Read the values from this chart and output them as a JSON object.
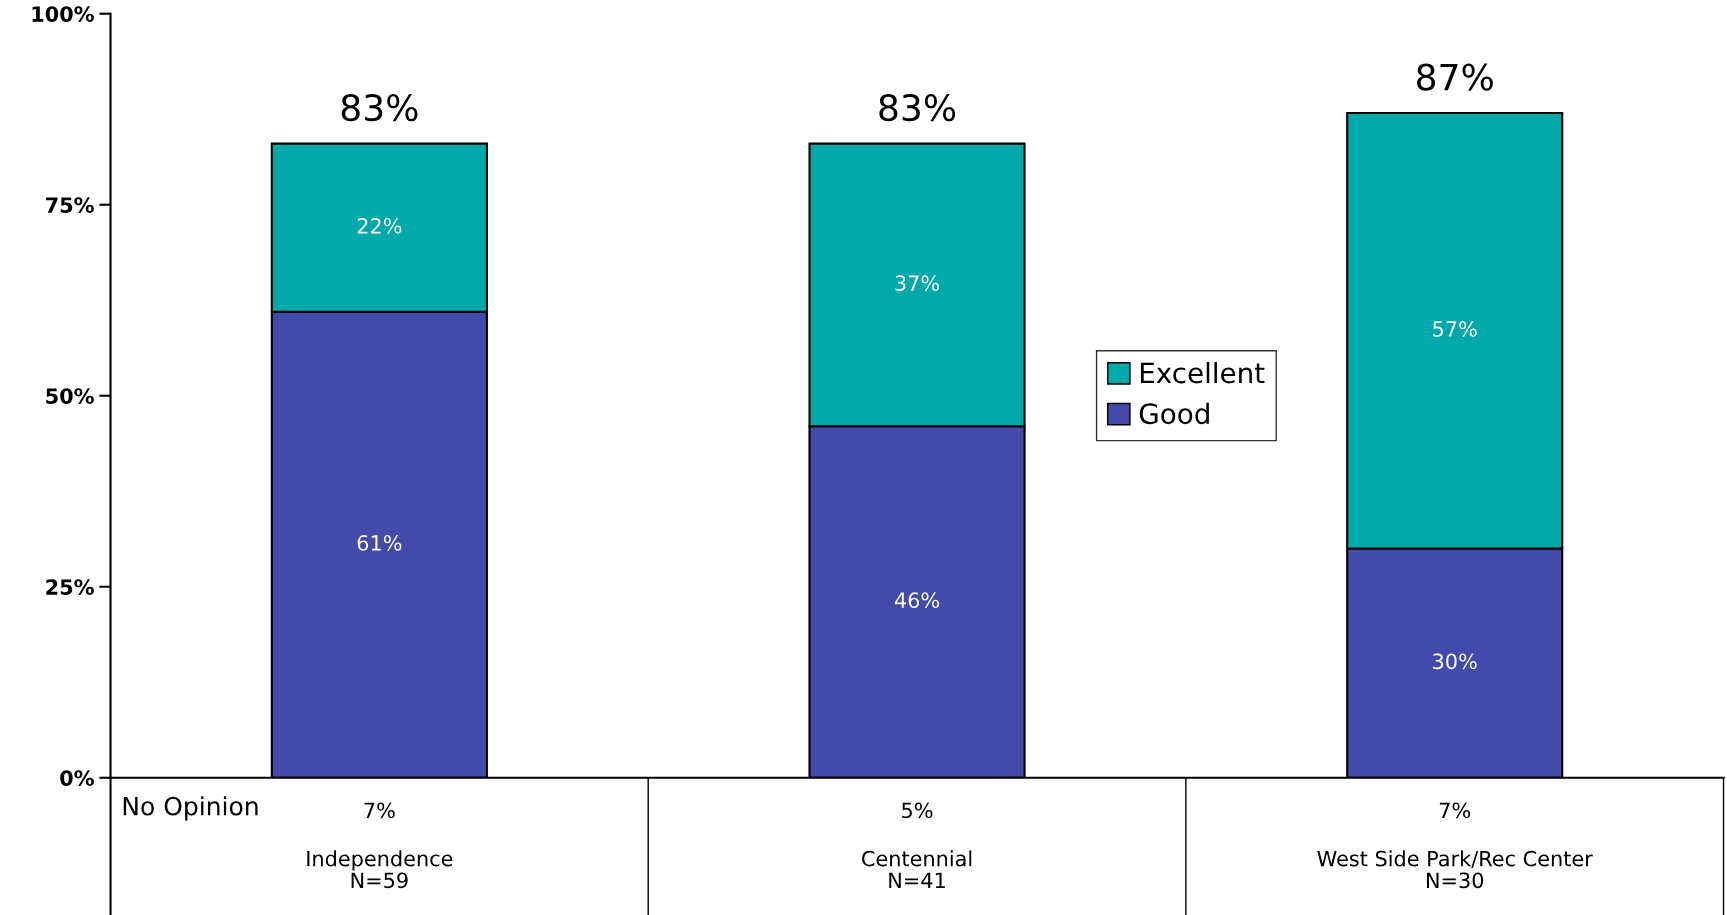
{
  "chart_data": {
    "type": "bar",
    "stacked": true,
    "categories": [
      "Independence\nN=59",
      "Centennial\nN=41",
      "West Side Park/Rec Center\nN=30"
    ],
    "series": [
      {
        "name": "Good",
        "color": "#434aab",
        "values": [
          61,
          46,
          30
        ],
        "value_labels": [
          "61%",
          "46%",
          "30%"
        ]
      },
      {
        "name": "Excellent",
        "color": "#00a9a9",
        "values": [
          22,
          37,
          57
        ],
        "value_labels": [
          "22%",
          "37%",
          "57%"
        ]
      }
    ],
    "totals": [
      "83%",
      "83%",
      "87%"
    ],
    "annotations": [
      "No Opinion",
      "7%",
      "5%",
      "7%"
    ],
    "ylim": [
      0,
      100
    ],
    "yticks": [
      {
        "value": 0,
        "label": "0%"
      },
      {
        "value": 25,
        "label": "25%"
      },
      {
        "value": 50,
        "label": "50%"
      },
      {
        "value": 75,
        "label": "75%"
      },
      {
        "value": 100,
        "label": "100%"
      }
    ],
    "grid": false,
    "legend": "center"
  }
}
